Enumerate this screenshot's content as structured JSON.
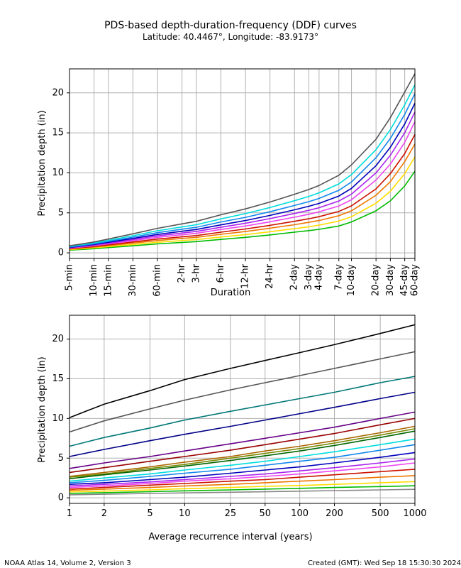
{
  "title": "PDS-based depth-duration-frequency (DDF) curves",
  "subtitle": "Latitude: 40.4467°, Longitude: -83.9173°",
  "footer_left": "NOAA Atlas 14, Volume 2, Version 3",
  "footer_right": "Created (GMT): Wed Sep 18 15:30:30 2024",
  "chart_data": [
    {
      "type": "line",
      "xlabel": "Duration",
      "ylabel": "Precipitation depth (in)",
      "ylim": [
        -0.7,
        23
      ],
      "yticks": [
        0,
        5,
        10,
        15,
        20
      ],
      "grid": true,
      "categories": [
        "5-min",
        "10-min",
        "15-min",
        "30-min",
        "60-min",
        "2-hr",
        "3-hr",
        "6-hr",
        "12-hr",
        "24-hr",
        "2-day",
        "3-day",
        "4-day",
        "7-day",
        "10-day",
        "20-day",
        "30-day",
        "45-day",
        "60-day"
      ],
      "category_hours": [
        0.0833,
        0.1667,
        0.25,
        0.5,
        1,
        2,
        3,
        6,
        12,
        24,
        48,
        72,
        96,
        168,
        240,
        480,
        720,
        1080,
        1440
      ],
      "series": [
        {
          "color": "#00bb00",
          "values": [
            0.34,
            0.52,
            0.66,
            0.88,
            1.12,
            1.3,
            1.4,
            1.68,
            1.94,
            2.24,
            2.58,
            2.78,
            2.94,
            3.36,
            3.86,
            5.26,
            6.5,
            8.36,
            10.2
          ]
        },
        {
          "color": "#ffdd00",
          "values": [
            0.4,
            0.62,
            0.78,
            1.04,
            1.32,
            1.54,
            1.66,
            1.98,
            2.28,
            2.64,
            3.02,
            3.26,
            3.46,
            3.98,
            4.52,
            6.2,
            7.7,
            9.9,
            12.0
          ]
        },
        {
          "color": "#ee7700",
          "values": [
            0.47,
            0.72,
            0.9,
            1.22,
            1.54,
            1.8,
            1.94,
            2.32,
            2.66,
            3.08,
            3.52,
            3.82,
            4.04,
            4.64,
            5.26,
            7.2,
            8.9,
            11.4,
            13.6
          ]
        },
        {
          "color": "#cc1100",
          "values": [
            0.52,
            0.8,
            1.0,
            1.36,
            1.72,
            2.0,
            2.16,
            2.58,
            2.98,
            3.44,
            3.94,
            4.26,
            4.52,
            5.18,
            5.88,
            8.0,
            9.9,
            12.4,
            14.8
          ]
        },
        {
          "color": "#ee44ee",
          "values": [
            0.58,
            0.9,
            1.12,
            1.52,
            1.94,
            2.26,
            2.44,
            2.92,
            3.36,
            3.88,
            4.46,
            4.82,
            5.12,
            5.86,
            6.64,
            9.1,
            11.1,
            13.8,
            16.4
          ]
        },
        {
          "color": "#aa22ee",
          "values": [
            0.63,
            0.98,
            1.22,
            1.66,
            2.12,
            2.48,
            2.68,
            3.2,
            3.7,
            4.28,
            4.92,
            5.32,
            5.64,
            6.48,
            7.34,
            10.0,
            12.2,
            15.0,
            17.6
          ]
        },
        {
          "color": "#0000bb",
          "values": [
            0.68,
            1.06,
            1.32,
            1.8,
            2.3,
            2.7,
            2.92,
            3.5,
            4.04,
            4.68,
            5.38,
            5.82,
            6.18,
            7.1,
            8.06,
            10.9,
            13.2,
            16.1,
            18.7
          ]
        },
        {
          "color": "#1188ee",
          "values": [
            0.74,
            1.14,
            1.44,
            1.96,
            2.52,
            2.96,
            3.2,
            3.86,
            4.44,
            5.14,
            5.92,
            6.4,
            6.8,
            7.82,
            8.86,
            11.9,
            14.3,
            17.3,
            19.9
          ]
        },
        {
          "color": "#00dddd",
          "values": [
            0.8,
            1.24,
            1.56,
            2.14,
            2.76,
            3.24,
            3.52,
            4.24,
            4.9,
            5.66,
            6.52,
            7.06,
            7.5,
            8.62,
            9.78,
            12.9,
            15.4,
            18.5,
            21.0
          ]
        },
        {
          "color": "#555555",
          "values": [
            0.88,
            1.36,
            1.72,
            2.38,
            3.06,
            3.62,
            3.94,
            4.76,
            5.5,
            6.36,
            7.32,
            7.92,
            8.42,
            9.7,
            11.0,
            14.2,
            16.9,
            20.1,
            22.4
          ]
        }
      ]
    },
    {
      "type": "line",
      "xlabel": "Average recurrence interval (years)",
      "ylabel": "Precipitation depth (in)",
      "xscale": "log",
      "xlim": [
        1,
        1000
      ],
      "ylim": [
        -0.7,
        23
      ],
      "yticks": [
        0,
        5,
        10,
        15,
        20
      ],
      "grid": true,
      "x": [
        1,
        2,
        5,
        10,
        25,
        50,
        100,
        200,
        500,
        1000
      ],
      "series": [
        {
          "color": "#000000",
          "values": [
            10.1,
            11.8,
            13.5,
            14.9,
            16.3,
            17.3,
            18.3,
            19.3,
            20.7,
            21.8
          ]
        },
        {
          "color": "#555555",
          "values": [
            8.3,
            9.7,
            11.2,
            12.3,
            13.6,
            14.5,
            15.4,
            16.3,
            17.5,
            18.4
          ]
        },
        {
          "color": "#007777",
          "values": [
            6.5,
            7.6,
            8.8,
            9.8,
            10.9,
            11.7,
            12.5,
            13.3,
            14.5,
            15.3
          ]
        },
        {
          "color": "#000088",
          "values": [
            5.2,
            6.1,
            7.2,
            8.0,
            9.0,
            9.8,
            10.6,
            11.4,
            12.5,
            13.3
          ]
        },
        {
          "color": "#660088",
          "values": [
            3.7,
            4.4,
            5.2,
            5.9,
            6.8,
            7.5,
            8.2,
            8.9,
            10.0,
            10.8
          ]
        },
        {
          "color": "#990000",
          "values": [
            3.2,
            3.8,
            4.6,
            5.2,
            6.0,
            6.7,
            7.4,
            8.1,
            9.2,
            10.0
          ]
        },
        {
          "color": "#aa6600",
          "values": [
            2.7,
            3.2,
            3.9,
            4.5,
            5.2,
            5.9,
            6.5,
            7.2,
            8.2,
            9.0
          ]
        },
        {
          "color": "#778800",
          "values": [
            2.6,
            3.0,
            3.7,
            4.2,
            5.0,
            5.6,
            6.2,
            6.9,
            7.9,
            8.7
          ]
        },
        {
          "color": "#006600",
          "values": [
            2.4,
            2.9,
            3.5,
            4.0,
            4.7,
            5.3,
            5.9,
            6.6,
            7.6,
            8.4
          ]
        },
        {
          "color": "#00dddd",
          "values": [
            2.1,
            2.5,
            3.0,
            3.5,
            4.1,
            4.6,
            5.2,
            5.8,
            6.7,
            7.4
          ]
        },
        {
          "color": "#1188ee",
          "values": [
            1.9,
            2.2,
            2.7,
            3.1,
            3.6,
            4.1,
            4.6,
            5.1,
            6.0,
            6.7
          ]
        },
        {
          "color": "#0000bb",
          "values": [
            1.7,
            1.9,
            2.3,
            2.6,
            3.1,
            3.5,
            3.9,
            4.4,
            5.1,
            5.7
          ]
        },
        {
          "color": "#aa22ee",
          "values": [
            1.5,
            1.7,
            2.0,
            2.3,
            2.7,
            3.0,
            3.4,
            3.8,
            4.4,
            4.9
          ]
        },
        {
          "color": "#ee44ee",
          "values": [
            1.3,
            1.5,
            1.8,
            2.1,
            2.4,
            2.7,
            3.0,
            3.4,
            3.9,
            4.4
          ]
        },
        {
          "color": "#cc1100",
          "values": [
            1.1,
            1.3,
            1.6,
            1.8,
            2.1,
            2.3,
            2.6,
            2.9,
            3.3,
            3.6
          ]
        },
        {
          "color": "#ee7700",
          "values": [
            0.95,
            1.1,
            1.3,
            1.5,
            1.7,
            1.9,
            2.1,
            2.3,
            2.6,
            2.8
          ]
        },
        {
          "color": "#ffdd00",
          "values": [
            0.75,
            0.85,
            1.0,
            1.15,
            1.3,
            1.45,
            1.55,
            1.7,
            1.9,
            2.05
          ]
        },
        {
          "color": "#00bb00",
          "values": [
            0.55,
            0.65,
            0.78,
            0.88,
            1.0,
            1.1,
            1.2,
            1.3,
            1.42,
            1.52
          ]
        },
        {
          "color": "#888888",
          "values": [
            0.38,
            0.45,
            0.55,
            0.62,
            0.7,
            0.77,
            0.84,
            0.91,
            1.0,
            1.07
          ]
        }
      ]
    }
  ]
}
